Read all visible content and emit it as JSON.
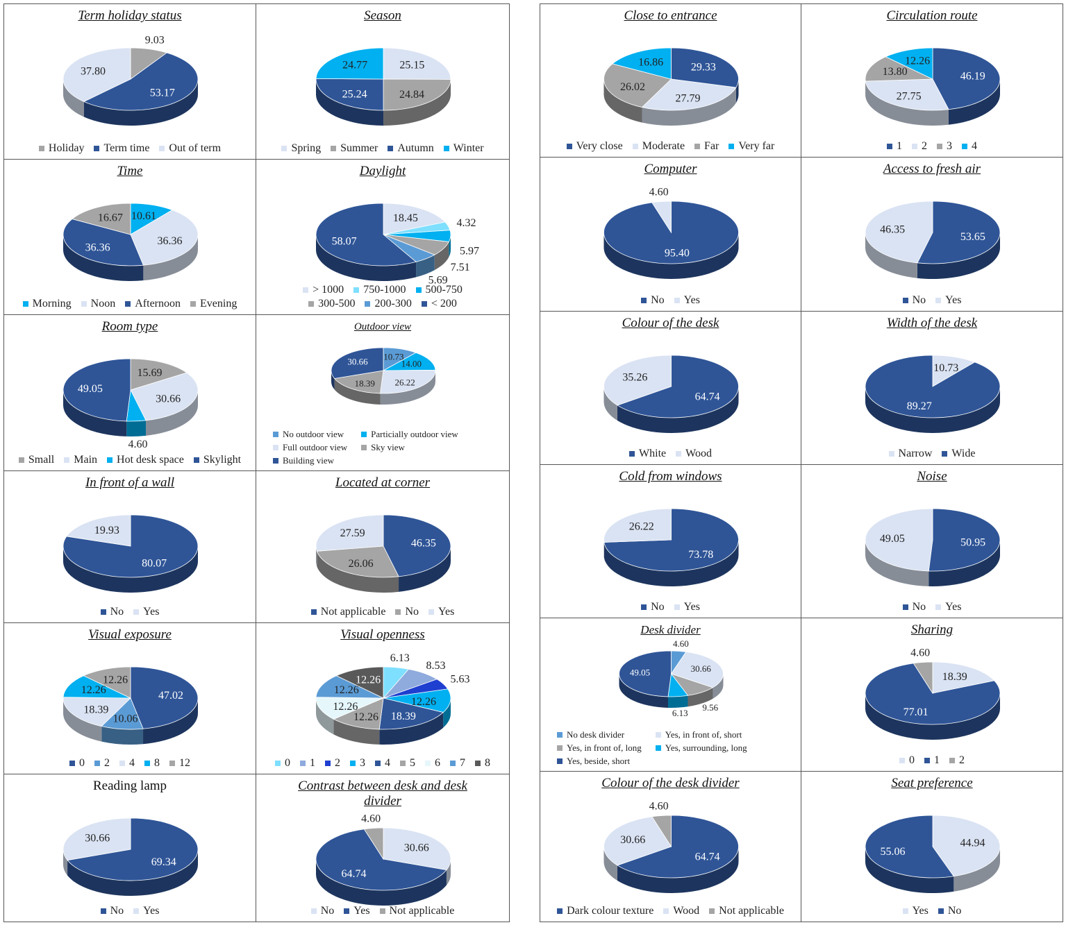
{
  "chart_data": [
    {
      "type": "pie",
      "title": "Term holiday status",
      "categories": [
        "Holiday",
        "Term time",
        "Out of term"
      ],
      "values": [
        9.03,
        53.17,
        37.8
      ],
      "value_labels": [
        "9.03",
        "53.17",
        "37.80"
      ],
      "colors": [
        "#a5a5a5",
        "#2f5597",
        "#dae3f3"
      ]
    },
    {
      "type": "pie",
      "title": "Season",
      "categories": [
        "Spring",
        "Summer",
        "Autumn",
        "Winter"
      ],
      "values": [
        25.15,
        24.84,
        25.24,
        24.77
      ],
      "value_labels": [
        "25.15",
        "24.84",
        "25.24",
        "24.77"
      ],
      "colors": [
        "#dae3f3",
        "#a5a5a5",
        "#2f5597",
        "#00b0f0"
      ]
    },
    {
      "type": "pie",
      "title": "Time",
      "categories": [
        "Morning",
        "Noon",
        "Afternoon",
        "Evening"
      ],
      "values": [
        10.61,
        36.36,
        36.36,
        16.67
      ],
      "value_labels": [
        "10.61",
        "36.36",
        "36.36",
        "16.67"
      ],
      "colors": [
        "#00b0f0",
        "#dae3f3",
        "#2f5597",
        "#a5a5a5"
      ]
    },
    {
      "type": "pie",
      "title": "Daylight",
      "categories": [
        "> 1000",
        "750-1000",
        "500-750",
        "300-500",
        "200-300",
        "< 200"
      ],
      "values": [
        18.45,
        4.32,
        5.97,
        7.51,
        5.69,
        58.07
      ],
      "value_labels": [
        "18.45",
        "4.32",
        "5.97",
        "7.51",
        "5.69",
        "58.07"
      ],
      "colors": [
        "#dae3f3",
        "#7fdfff",
        "#00b0f0",
        "#a5a5a5",
        "#5b9bd5",
        "#2f5597"
      ]
    },
    {
      "type": "pie",
      "title": "Room type",
      "categories": [
        "Small",
        "Main",
        "Hot desk space",
        "Skylight"
      ],
      "values": [
        15.69,
        30.66,
        4.6,
        49.05
      ],
      "value_labels": [
        "15.69",
        "30.66",
        "4.60",
        "49.05"
      ],
      "colors": [
        "#a5a5a5",
        "#dae3f3",
        "#00b0f0",
        "#2f5597"
      ]
    },
    {
      "type": "pie",
      "title": "Outdoor view",
      "categories": [
        "No outdoor view",
        "Particially outdoor view",
        "Full outdoor view",
        "Sky view",
        "Building view"
      ],
      "values": [
        10.73,
        14.0,
        26.22,
        18.39,
        30.66
      ],
      "value_labels": [
        "10.73",
        "14.00",
        "26.22",
        "18.39",
        "30.66"
      ],
      "colors": [
        "#5b9bd5",
        "#00b0f0",
        "#dae3f3",
        "#a5a5a5",
        "#2f5597"
      ]
    },
    {
      "type": "pie",
      "title": "In front of a wall",
      "categories": [
        "No",
        "Yes"
      ],
      "values": [
        80.07,
        19.93
      ],
      "value_labels": [
        "80.07",
        "19.93"
      ],
      "colors": [
        "#2f5597",
        "#dae3f3"
      ]
    },
    {
      "type": "pie",
      "title": "Located at corner",
      "categories": [
        "Not applicable",
        "No",
        "Yes"
      ],
      "values": [
        46.35,
        26.06,
        27.59
      ],
      "value_labels": [
        "46.35",
        "26.06",
        "27.59"
      ],
      "colors": [
        "#2f5597",
        "#a5a5a5",
        "#dae3f3"
      ]
    },
    {
      "type": "pie",
      "title": "Visual exposure",
      "categories": [
        "0",
        "2",
        "4",
        "8",
        "12"
      ],
      "values": [
        47.02,
        10.06,
        18.39,
        12.26,
        12.26
      ],
      "value_labels": [
        "47.02",
        "10.06",
        "18.39",
        "12.26",
        "12.26"
      ],
      "colors": [
        "#2f5597",
        "#5b9bd5",
        "#dae3f3",
        "#00b0f0",
        "#a5a5a5"
      ]
    },
    {
      "type": "pie",
      "title": "Visual openness",
      "categories": [
        "0",
        "1",
        "2",
        "3",
        "4",
        "5",
        "6",
        "7",
        "8"
      ],
      "values": [
        6.13,
        8.53,
        5.63,
        12.26,
        18.39,
        12.26,
        12.26,
        12.26,
        12.26
      ],
      "value_labels": [
        "6.13",
        "8.53",
        "5.63",
        "12.26",
        "18.39",
        "12.26",
        "12.26",
        "12.26",
        "12.26"
      ],
      "colors": [
        "#7fdfff",
        "#8faadc",
        "#1f3fd0",
        "#00b0f0",
        "#2f5597",
        "#a5a5a5",
        "#e6f7fb",
        "#5b9bd5",
        "#595959"
      ]
    },
    {
      "type": "pie",
      "title": "Reading lamp",
      "categories": [
        "No",
        "Yes"
      ],
      "values": [
        69.34,
        30.66
      ],
      "value_labels": [
        "69.34",
        "30.66"
      ],
      "colors": [
        "#2f5597",
        "#dae3f3"
      ]
    },
    {
      "type": "pie",
      "title": "Contrast between desk and desk divider",
      "categories": [
        "No",
        "Yes",
        "Not applicable"
      ],
      "values": [
        30.66,
        64.74,
        4.6
      ],
      "value_labels": [
        "30.66",
        "64.74",
        "4.60"
      ],
      "colors": [
        "#dae3f3",
        "#2f5597",
        "#a5a5a5"
      ]
    },
    {
      "type": "pie",
      "title": "Close to entrance",
      "categories": [
        "Very close",
        "Moderate",
        "Far",
        "Very far"
      ],
      "values": [
        29.33,
        27.79,
        26.02,
        16.86
      ],
      "value_labels": [
        "29.33",
        "27.79",
        "26.02",
        "16.86"
      ],
      "colors": [
        "#2f5597",
        "#dae3f3",
        "#a5a5a5",
        "#00b0f0"
      ]
    },
    {
      "type": "pie",
      "title": "Circulation route",
      "categories": [
        "1",
        "2",
        "3",
        "4"
      ],
      "values": [
        46.19,
        27.75,
        13.8,
        12.26
      ],
      "value_labels": [
        "46.19",
        "27.75",
        "13.80",
        "12.26"
      ],
      "colors": [
        "#2f5597",
        "#dae3f3",
        "#a5a5a5",
        "#00b0f0"
      ]
    },
    {
      "type": "pie",
      "title": "Computer",
      "categories": [
        "No",
        "Yes"
      ],
      "values": [
        95.4,
        4.6
      ],
      "value_labels": [
        "95.40",
        "4.60"
      ],
      "colors": [
        "#2f5597",
        "#dae3f3"
      ]
    },
    {
      "type": "pie",
      "title": "Access to fresh air",
      "categories": [
        "No",
        "Yes"
      ],
      "values": [
        53.65,
        46.35
      ],
      "value_labels": [
        "53.65",
        "46.35"
      ],
      "colors": [
        "#2f5597",
        "#dae3f3"
      ]
    },
    {
      "type": "pie",
      "title": "Colour of the desk",
      "categories": [
        "White",
        "Wood"
      ],
      "values": [
        64.74,
        35.26
      ],
      "value_labels": [
        "64.74",
        "35.26"
      ],
      "colors": [
        "#2f5597",
        "#dae3f3"
      ]
    },
    {
      "type": "pie",
      "title": "Width of the desk",
      "categories": [
        "Narrow",
        "Wide"
      ],
      "values": [
        10.73,
        89.27
      ],
      "value_labels": [
        "10.73",
        "89.27"
      ],
      "colors": [
        "#dae3f3",
        "#2f5597"
      ]
    },
    {
      "type": "pie",
      "title": "Cold from windows",
      "categories": [
        "No",
        "Yes"
      ],
      "values": [
        73.78,
        26.22
      ],
      "value_labels": [
        "73.78",
        "26.22"
      ],
      "colors": [
        "#2f5597",
        "#dae3f3"
      ]
    },
    {
      "type": "pie",
      "title": "Noise",
      "categories": [
        "No",
        "Yes"
      ],
      "values": [
        50.95,
        49.05
      ],
      "value_labels": [
        "50.95",
        "49.05"
      ],
      "colors": [
        "#2f5597",
        "#dae3f3"
      ]
    },
    {
      "type": "pie",
      "title": "Desk divider",
      "categories": [
        "No desk divider",
        "Yes, in front of, short",
        "Yes, in front of, long",
        "Yes, surrounding, long",
        "Yes, beside, short"
      ],
      "values": [
        4.6,
        30.66,
        9.56,
        6.13,
        49.05
      ],
      "value_labels": [
        "4.60",
        "30.66",
        "9.56",
        "6.13",
        "49.05"
      ],
      "colors": [
        "#5b9bd5",
        "#dae3f3",
        "#a5a5a5",
        "#00b0f0",
        "#2f5597"
      ]
    },
    {
      "type": "pie",
      "title": "Sharing",
      "categories": [
        "0",
        "1",
        "2"
      ],
      "values": [
        18.39,
        77.01,
        4.6
      ],
      "value_labels": [
        "18.39",
        "77.01",
        "4.60"
      ],
      "colors": [
        "#dae3f3",
        "#2f5597",
        "#a5a5a5"
      ]
    },
    {
      "type": "pie",
      "title": "Colour of the desk divider",
      "categories": [
        "Dark colour texture",
        "Wood",
        "Not applicable"
      ],
      "values": [
        64.74,
        30.66,
        4.6
      ],
      "value_labels": [
        "64.74",
        "30.66",
        "4.60"
      ],
      "colors": [
        "#2f5597",
        "#dae3f3",
        "#a5a5a5"
      ]
    },
    {
      "type": "pie",
      "title": "Seat preference",
      "categories": [
        "Yes",
        "No"
      ],
      "values": [
        44.94,
        55.06
      ],
      "value_labels": [
        "44.94",
        "55.06"
      ],
      "colors": [
        "#dae3f3",
        "#2f5597"
      ]
    }
  ]
}
